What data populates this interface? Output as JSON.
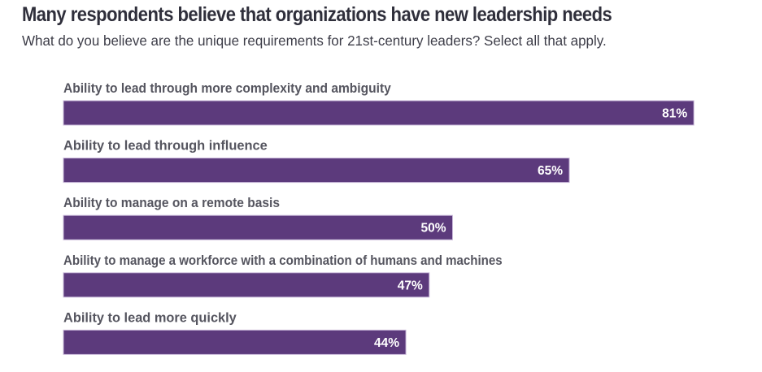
{
  "chart_data": {
    "type": "bar",
    "orientation": "horizontal",
    "title": "Many respondents believe that organizations have new leadership needs",
    "subtitle": "What do you believe are the unique requirements for 21st-century leaders? Select all that apply.",
    "categories": [
      "Ability to lead through more complexity and ambiguity",
      "Ability to lead through influence",
      "Ability to manage on a remote basis",
      "Ability to manage a workforce with a combination of humans and machines",
      "Ability to lead more quickly"
    ],
    "values": [
      81,
      65,
      50,
      47,
      44
    ],
    "value_labels": [
      "81%",
      "65%",
      "50%",
      "47%",
      "44%"
    ],
    "unit": "%",
    "xlim": [
      0,
      100
    ],
    "xlabel": "",
    "ylabel": "",
    "grid": false,
    "legend": "none",
    "colors": {
      "bar": "#5c3a7c",
      "bar_border": "#c9b8d9",
      "value_text": "#ffffff",
      "category_text": "#55555f",
      "title_text": "#2f2f3b"
    }
  }
}
